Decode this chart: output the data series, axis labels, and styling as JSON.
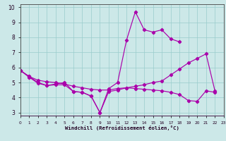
{
  "xlabel": "Windchill (Refroidissement éolien,°C)",
  "xlim": [
    0,
    23
  ],
  "ylim": [
    2.8,
    10.2
  ],
  "yticks": [
    3,
    4,
    5,
    6,
    7,
    8,
    9,
    10
  ],
  "xticks": [
    0,
    1,
    2,
    3,
    4,
    5,
    6,
    7,
    8,
    9,
    10,
    11,
    12,
    13,
    14,
    15,
    16,
    17,
    18,
    19,
    20,
    21,
    22,
    23
  ],
  "background_color": "#cce8e8",
  "line_color": "#aa00aa",
  "grid_color": "#99cccc",
  "line1": {
    "x": [
      0,
      1,
      2,
      3,
      4,
      5,
      6,
      7,
      8,
      9,
      10,
      11,
      12,
      13,
      14,
      15,
      16,
      17,
      18
    ],
    "y": [
      5.8,
      5.4,
      5.0,
      4.8,
      4.9,
      5.0,
      4.4,
      4.35,
      4.1,
      3.0,
      4.6,
      5.0,
      7.8,
      9.7,
      8.5,
      8.35,
      8.5,
      7.9,
      7.7
    ]
  },
  "line2": {
    "x": [
      0,
      1,
      2,
      3,
      4,
      5,
      6,
      7,
      8,
      9,
      10,
      11,
      12,
      13,
      14,
      15,
      16,
      17,
      18,
      19,
      20,
      21,
      22
    ],
    "y": [
      5.8,
      5.4,
      5.15,
      5.05,
      5.0,
      4.9,
      4.75,
      4.65,
      4.55,
      4.5,
      4.5,
      4.6,
      4.65,
      4.75,
      4.85,
      5.0,
      5.1,
      5.5,
      5.9,
      6.3,
      6.6,
      6.9,
      4.45
    ]
  },
  "line3": {
    "x": [
      0,
      1,
      2,
      3,
      4,
      5,
      6,
      7,
      8,
      9,
      10,
      11,
      12,
      13,
      14,
      15,
      16,
      17,
      18,
      19,
      20,
      21,
      22
    ],
    "y": [
      5.8,
      5.35,
      4.95,
      4.8,
      4.85,
      4.85,
      4.4,
      4.35,
      4.1,
      3.0,
      4.4,
      4.5,
      4.65,
      4.6,
      4.55,
      4.5,
      4.45,
      4.35,
      4.2,
      3.8,
      3.75,
      4.45,
      4.35
    ]
  }
}
